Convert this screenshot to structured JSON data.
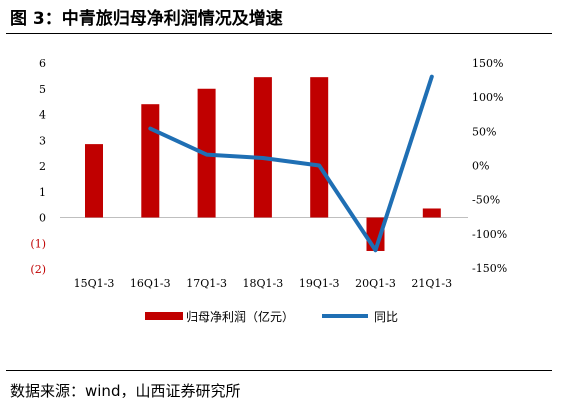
{
  "title": "图 3：中青旅归母净利润情况及增速",
  "source": "数据来源：wind，山西证券研究所",
  "chart_data": {
    "type": "bar+line",
    "categories": [
      "15Q1-3",
      "16Q1-3",
      "17Q1-3",
      "18Q1-3",
      "19Q1-3",
      "20Q1-3",
      "21Q1-3"
    ],
    "series": [
      {
        "name": "归母净利润（亿元）",
        "type": "bar",
        "axis": "left",
        "color": "#c00000",
        "values": [
          2.85,
          4.4,
          5.0,
          5.45,
          5.45,
          -1.3,
          0.35
        ]
      },
      {
        "name": "同比",
        "type": "line",
        "axis": "right",
        "color": "#1f6fb4",
        "values": [
          null,
          0.54,
          0.16,
          0.11,
          0.0,
          -1.24,
          1.3
        ]
      }
    ],
    "y_left": {
      "ylim": [
        -2,
        6
      ],
      "ticks": [
        {
          "v": 6,
          "label": "6",
          "color": "#000000"
        },
        {
          "v": 5,
          "label": "5",
          "color": "#000000"
        },
        {
          "v": 4,
          "label": "4",
          "color": "#000000"
        },
        {
          "v": 3,
          "label": "3",
          "color": "#000000"
        },
        {
          "v": 2,
          "label": "2",
          "color": "#000000"
        },
        {
          "v": 1,
          "label": "1",
          "color": "#000000"
        },
        {
          "v": 0,
          "label": "0",
          "color": "#000000"
        },
        {
          "v": -1,
          "label": "(1)",
          "color": "#c00000"
        },
        {
          "v": -2,
          "label": "(2)",
          "color": "#c00000"
        }
      ]
    },
    "y_right": {
      "ylim": [
        -1.5,
        1.5
      ],
      "ticks": [
        {
          "v": 1.5,
          "label": "150%"
        },
        {
          "v": 1.0,
          "label": "100%"
        },
        {
          "v": 0.5,
          "label": "50%"
        },
        {
          "v": 0.0,
          "label": "0%"
        },
        {
          "v": -0.5,
          "label": "-50%"
        },
        {
          "v": -1.0,
          "label": "-100%"
        },
        {
          "v": -1.5,
          "label": "-150%"
        }
      ]
    },
    "legend_position": "bottom",
    "grid": false
  }
}
